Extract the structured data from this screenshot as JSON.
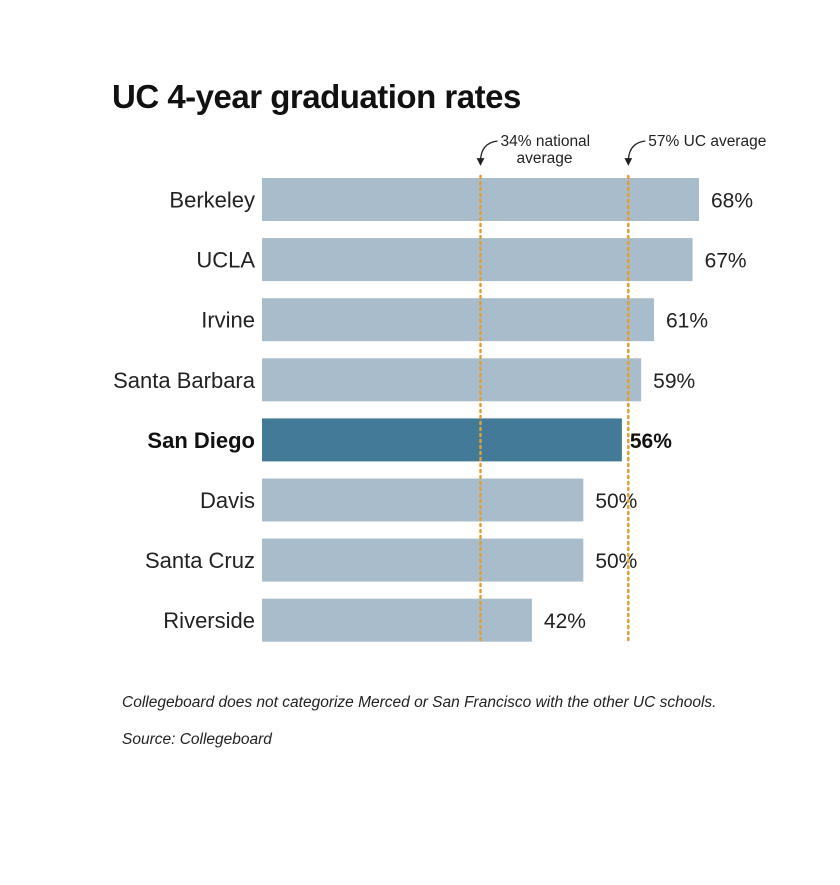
{
  "chart_data": {
    "type": "bar",
    "orientation": "horizontal",
    "title": "UC 4-year graduation rates",
    "categories": [
      "Berkeley",
      "UCLA",
      "Irvine",
      "Santa Barbara",
      "San Diego",
      "Davis",
      "Santa Cruz",
      "Riverside"
    ],
    "values": [
      68,
      67,
      61,
      59,
      56,
      50,
      50,
      42
    ],
    "value_labels": [
      "68%",
      "67%",
      "61%",
      "59%",
      "56%",
      "50%",
      "50%",
      "42%"
    ],
    "highlight": "San Diego",
    "xlim": [
      0,
      68
    ],
    "grid": false,
    "reference_lines": [
      {
        "value": 34,
        "label_lines": [
          "34% national",
          "average"
        ]
      },
      {
        "value": 57,
        "label_lines": [
          "57% UC average"
        ]
      }
    ],
    "colors": {
      "bar": "#a9bccc",
      "highlight_bar": "#427a97",
      "reference_line": "#e0a030"
    }
  },
  "notes": {
    "footnote": "Collegeboard does not categorize Merced or San Francisco with the other UC schools.",
    "source": "Source: Collegeboard"
  }
}
